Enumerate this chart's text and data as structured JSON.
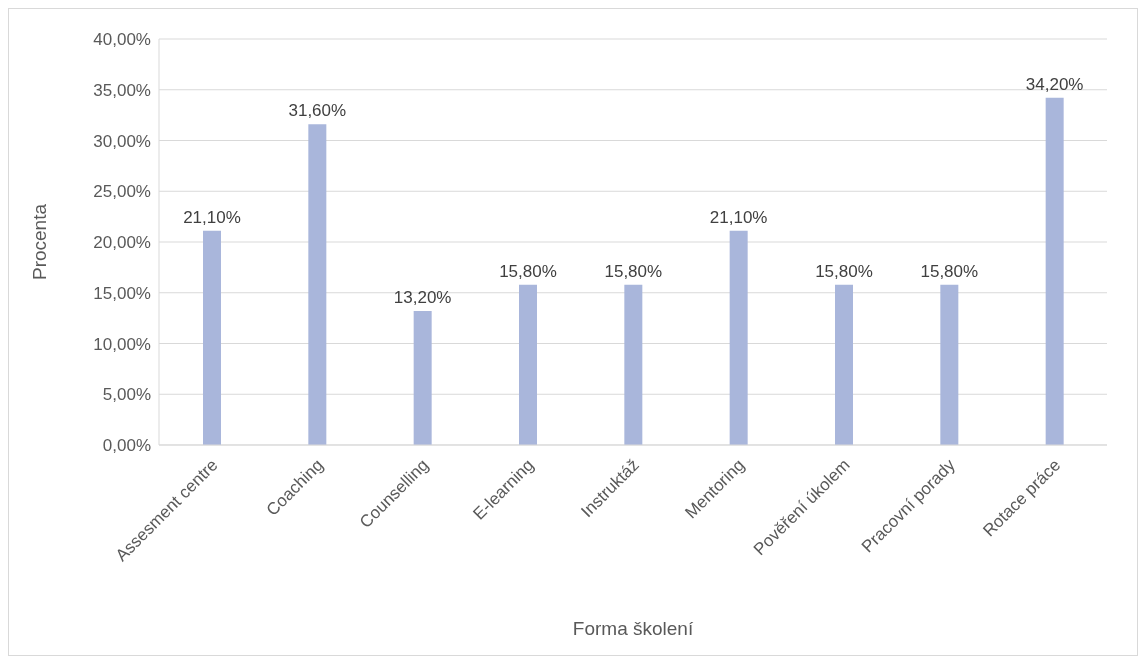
{
  "chart_data": {
    "type": "bar",
    "xlabel": "Forma školení",
    "ylabel": "Procenta",
    "categories": [
      "Assesment centre",
      "Coaching",
      "Counselling",
      "E-learning",
      "Instruktáž",
      "Mentoring",
      "Pověření úkolem",
      "Pracovní porady",
      "Rotace práce"
    ],
    "values": [
      21.1,
      31.6,
      13.2,
      15.8,
      15.8,
      21.1,
      15.8,
      15.8,
      34.2
    ],
    "value_labels": [
      "21,10%",
      "31,60%",
      "13,20%",
      "15,80%",
      "15,80%",
      "21,10%",
      "15,80%",
      "15,80%",
      "34,20%"
    ],
    "color": "#a9b6db",
    "ylim": [
      0,
      40
    ],
    "yticks": [
      {
        "value": 0,
        "label": "0,00%"
      },
      {
        "value": 5,
        "label": "5,00%"
      },
      {
        "value": 10,
        "label": "10,00%"
      },
      {
        "value": 15,
        "label": "15,00%"
      },
      {
        "value": 20,
        "label": "20,00%"
      },
      {
        "value": 25,
        "label": "25,00%"
      },
      {
        "value": 30,
        "label": "30,00%"
      },
      {
        "value": 35,
        "label": "35,00%"
      },
      {
        "value": 40,
        "label": "40,00%"
      }
    ],
    "grid": "y",
    "legend": false
  }
}
